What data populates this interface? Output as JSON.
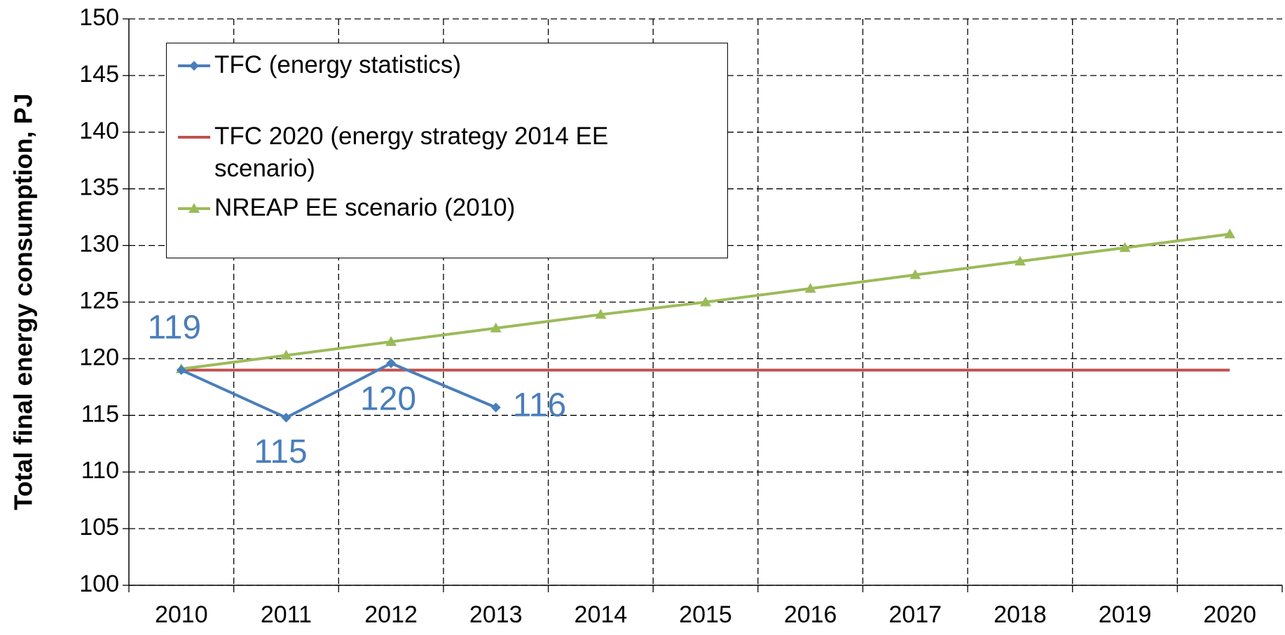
{
  "chart_data": {
    "type": "line",
    "y_label": "Total final energy consumption, PJ",
    "categories": [
      "2010",
      "2011",
      "2012",
      "2013",
      "2014",
      "2015",
      "2016",
      "2017",
      "2018",
      "2019",
      "2020"
    ],
    "series": [
      {
        "name": "TFC (energy statistics)",
        "color": "#4a7ebb",
        "marker": "diamond",
        "values": [
          119.0,
          114.8,
          119.6,
          115.7,
          null,
          null,
          null,
          null,
          null,
          null,
          null
        ],
        "value_labels": [
          "119",
          "115",
          "120",
          "116",
          null,
          null,
          null,
          null,
          null,
          null,
          null
        ]
      },
      {
        "name": "TFC 2020 (energy strategy 2014 EE scenario)",
        "color": "#c0504d",
        "marker": "none",
        "values": [
          119,
          119,
          119,
          119,
          119,
          119,
          119,
          119,
          119,
          119,
          119
        ]
      },
      {
        "name": "NREAP EE scenario (2010)",
        "color": "#9bbb59",
        "marker": "triangle",
        "values": [
          119.1,
          120.3,
          121.5,
          122.7,
          123.9,
          125.0,
          126.2,
          127.4,
          128.6,
          129.8,
          131.0
        ]
      }
    ],
    "ylim": [
      100,
      150
    ],
    "yticks": [
      100,
      105,
      110,
      115,
      120,
      125,
      130,
      135,
      140,
      145,
      150
    ],
    "grid": true
  }
}
